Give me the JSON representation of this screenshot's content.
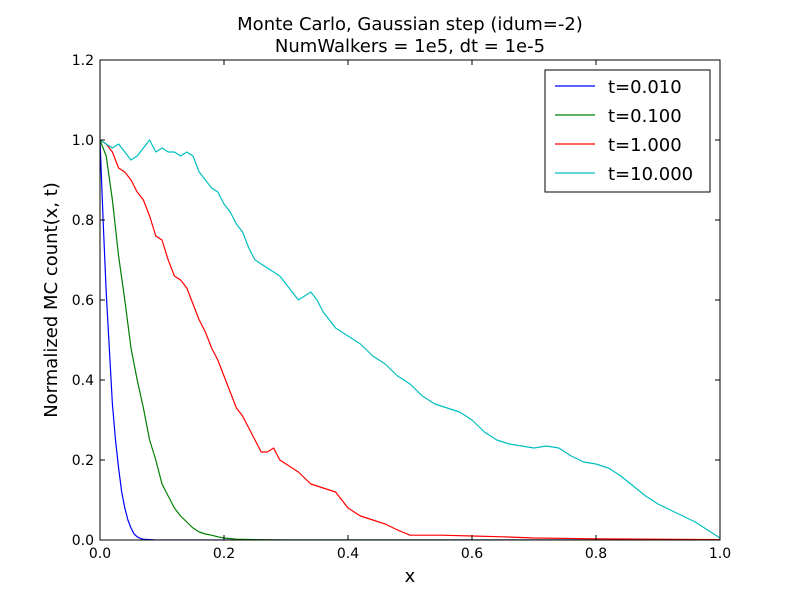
{
  "chart_data": {
    "type": "line",
    "title": "Monte Carlo, Gaussian step (idum=-2)",
    "subtitle": "NumWalkers = 1e5, dt = 1e-5",
    "xlabel": "x",
    "ylabel": "Normalized MC count(x, t)",
    "xlim": [
      0.0,
      1.0
    ],
    "ylim": [
      0.0,
      1.2
    ],
    "xticks": [
      0.0,
      0.2,
      0.4,
      0.6,
      0.8,
      1.0
    ],
    "xtick_labels": [
      "0.0",
      "0.2",
      "0.4",
      "0.6",
      "0.8",
      "1.0"
    ],
    "yticks": [
      0.0,
      0.2,
      0.4,
      0.6,
      0.8,
      1.0,
      1.2
    ],
    "ytick_labels": [
      "0.0",
      "0.2",
      "0.4",
      "0.6",
      "0.8",
      "1.0",
      "1.2"
    ],
    "grid": false,
    "legend_position": "top-right",
    "series": [
      {
        "name": "t=0.010",
        "color": "#0000ff",
        "x": [
          0.0,
          0.005,
          0.01,
          0.015,
          0.02,
          0.025,
          0.03,
          0.035,
          0.04,
          0.045,
          0.05,
          0.055,
          0.06,
          0.065,
          0.07,
          0.08,
          0.09,
          0.1,
          0.2,
          0.4,
          0.6,
          0.8,
          1.0
        ],
        "y": [
          1.0,
          0.8,
          0.62,
          0.48,
          0.34,
          0.25,
          0.18,
          0.12,
          0.08,
          0.05,
          0.03,
          0.015,
          0.008,
          0.004,
          0.002,
          0.001,
          0.0,
          0.0,
          0.0,
          0.0,
          0.0,
          0.0,
          0.0
        ]
      },
      {
        "name": "t=0.100",
        "color": "#008000",
        "x": [
          0.0,
          0.01,
          0.02,
          0.03,
          0.04,
          0.05,
          0.06,
          0.07,
          0.08,
          0.09,
          0.1,
          0.11,
          0.12,
          0.13,
          0.14,
          0.15,
          0.16,
          0.17,
          0.18,
          0.19,
          0.2,
          0.22,
          0.25,
          0.3,
          0.4,
          0.6,
          0.8,
          1.0
        ],
        "y": [
          1.0,
          0.96,
          0.85,
          0.71,
          0.6,
          0.48,
          0.4,
          0.33,
          0.25,
          0.2,
          0.14,
          0.11,
          0.08,
          0.06,
          0.045,
          0.03,
          0.02,
          0.015,
          0.012,
          0.008,
          0.005,
          0.002,
          0.001,
          0.0,
          0.0,
          0.0,
          0.0,
          0.0
        ]
      },
      {
        "name": "t=1.000",
        "color": "#ff0000",
        "x": [
          0.0,
          0.01,
          0.02,
          0.03,
          0.04,
          0.05,
          0.06,
          0.07,
          0.08,
          0.09,
          0.1,
          0.11,
          0.12,
          0.13,
          0.14,
          0.15,
          0.16,
          0.17,
          0.18,
          0.19,
          0.2,
          0.21,
          0.22,
          0.23,
          0.24,
          0.25,
          0.26,
          0.27,
          0.28,
          0.29,
          0.3,
          0.32,
          0.34,
          0.36,
          0.38,
          0.4,
          0.42,
          0.44,
          0.46,
          0.48,
          0.5,
          0.55,
          0.6,
          0.65,
          0.7,
          0.8,
          0.9,
          1.0
        ],
        "y": [
          1.0,
          0.99,
          0.97,
          0.93,
          0.92,
          0.9,
          0.87,
          0.85,
          0.81,
          0.76,
          0.75,
          0.7,
          0.66,
          0.65,
          0.63,
          0.59,
          0.55,
          0.52,
          0.48,
          0.45,
          0.41,
          0.37,
          0.33,
          0.31,
          0.28,
          0.25,
          0.22,
          0.22,
          0.23,
          0.2,
          0.19,
          0.17,
          0.14,
          0.13,
          0.12,
          0.08,
          0.06,
          0.05,
          0.04,
          0.025,
          0.012,
          0.012,
          0.01,
          0.008,
          0.005,
          0.003,
          0.002,
          0.001
        ]
      },
      {
        "name": "t=10.000",
        "color": "#00bfbf",
        "x": [
          0.0,
          0.01,
          0.02,
          0.03,
          0.04,
          0.05,
          0.06,
          0.07,
          0.08,
          0.09,
          0.1,
          0.11,
          0.12,
          0.13,
          0.14,
          0.15,
          0.16,
          0.17,
          0.18,
          0.19,
          0.2,
          0.21,
          0.22,
          0.23,
          0.24,
          0.25,
          0.26,
          0.27,
          0.28,
          0.29,
          0.3,
          0.31,
          0.32,
          0.33,
          0.34,
          0.35,
          0.36,
          0.38,
          0.4,
          0.42,
          0.44,
          0.46,
          0.48,
          0.5,
          0.52,
          0.54,
          0.56,
          0.58,
          0.6,
          0.62,
          0.64,
          0.66,
          0.68,
          0.7,
          0.72,
          0.74,
          0.76,
          0.78,
          0.8,
          0.82,
          0.84,
          0.86,
          0.88,
          0.9,
          0.92,
          0.94,
          0.96,
          0.98,
          1.0
        ],
        "y": [
          1.0,
          0.99,
          0.98,
          0.99,
          0.97,
          0.95,
          0.96,
          0.98,
          1.0,
          0.97,
          0.98,
          0.97,
          0.97,
          0.96,
          0.97,
          0.96,
          0.92,
          0.9,
          0.88,
          0.87,
          0.84,
          0.82,
          0.79,
          0.77,
          0.73,
          0.7,
          0.69,
          0.68,
          0.67,
          0.66,
          0.64,
          0.62,
          0.6,
          0.61,
          0.62,
          0.6,
          0.57,
          0.53,
          0.51,
          0.49,
          0.46,
          0.44,
          0.41,
          0.39,
          0.36,
          0.34,
          0.33,
          0.32,
          0.3,
          0.27,
          0.25,
          0.24,
          0.235,
          0.23,
          0.235,
          0.23,
          0.21,
          0.195,
          0.19,
          0.18,
          0.16,
          0.135,
          0.11,
          0.09,
          0.075,
          0.06,
          0.045,
          0.025,
          0.005
        ]
      }
    ]
  }
}
